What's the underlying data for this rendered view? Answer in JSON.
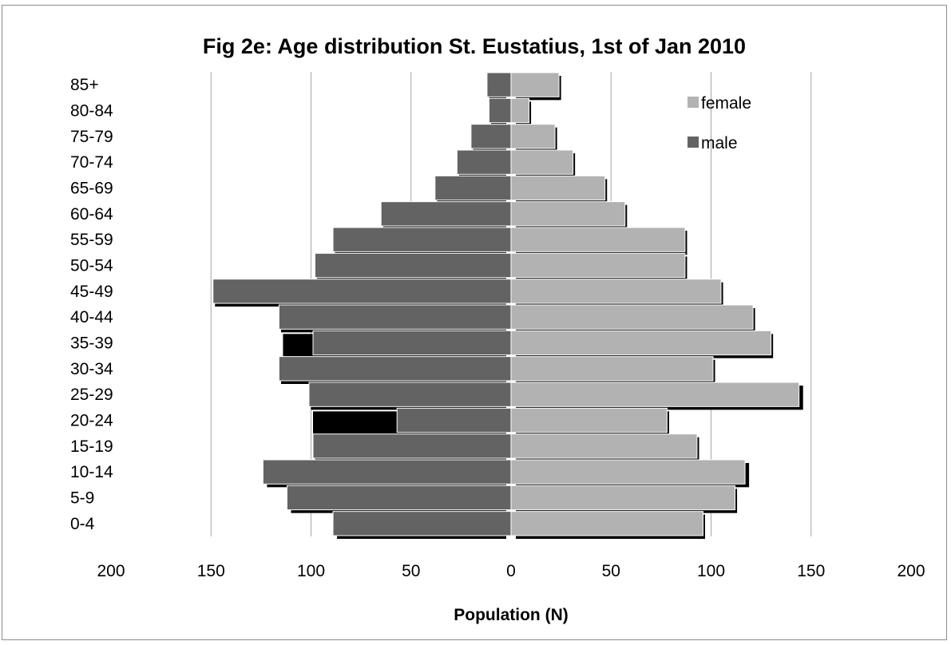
{
  "chart_data": {
    "type": "bar",
    "orientation": "horizontal-population-pyramid",
    "title": "Fig 2e: Age distribution St. Eustatius, 1st of Jan 2010",
    "xlabel": "Population (N)",
    "ylabel": "",
    "xlim": [
      -200,
      200
    ],
    "x_ticks": [
      -200,
      -150,
      -100,
      -50,
      0,
      50,
      100,
      150,
      200
    ],
    "x_tick_labels": [
      "200",
      "150",
      "100",
      "50",
      "0",
      "50",
      "100",
      "150",
      "200"
    ],
    "grid": "vertical",
    "legend_position": "top-right",
    "categories": [
      "0-4",
      "5-9",
      "10-14",
      "15-19",
      "20-24",
      "25-29",
      "30-34",
      "35-39",
      "40-44",
      "45-49",
      "50-54",
      "55-59",
      "60-64",
      "65-69",
      "70-74",
      "75-79",
      "80-84",
      "85+"
    ],
    "series": [
      {
        "name": "female",
        "color": "#b2b2b2",
        "values": [
          96,
          112,
          117,
          93,
          78,
          144,
          101,
          130,
          121,
          105,
          87,
          87,
          57,
          47,
          31,
          22,
          9,
          24
        ]
      },
      {
        "name": "male",
        "color": "#636363",
        "values": [
          -89,
          -112,
          -124,
          -99,
          -57,
          -101,
          -116,
          -99,
          -116,
          -149,
          -98,
          -89,
          -65,
          -38,
          -27,
          -20,
          -11,
          -12
        ]
      },
      {
        "name": "",
        "color": "#000000",
        "values_female": [
          97,
          113,
          119,
          94,
          79,
          146,
          102,
          131,
          122,
          106,
          88,
          88,
          58,
          48,
          32,
          23,
          10,
          25
        ],
        "values_male": [
          -87,
          -110,
          -122,
          -98,
          -99,
          -100,
          -115,
          -114,
          -115,
          -148,
          -97,
          -88,
          -64,
          -37,
          -26,
          -19,
          -10,
          -11
        ]
      }
    ]
  },
  "colors": {
    "female": "#b2b2b2",
    "male": "#636363",
    "outline": "#000000",
    "grid": "#a6a6a6",
    "frame": "#8c8c8c"
  }
}
